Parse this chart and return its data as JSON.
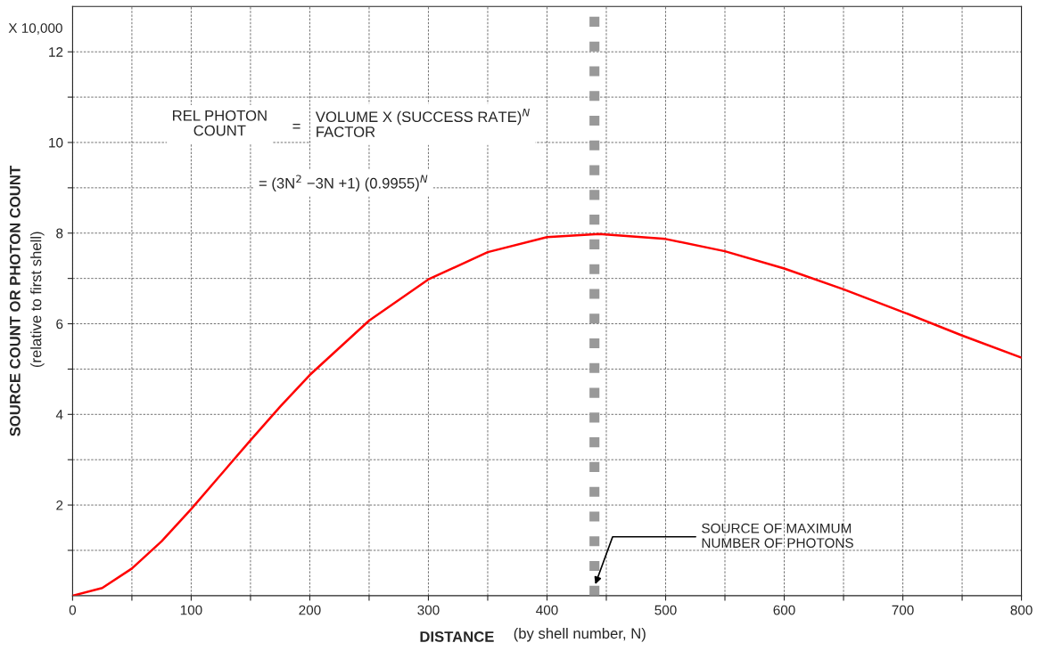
{
  "chart_data": {
    "type": "line",
    "xlabel": "DISTANCE",
    "ylabel": "SOURCE COUNT OR PHOTON COUNT",
    "x": [
      0,
      25,
      50,
      75,
      100,
      125,
      150,
      175,
      200,
      250,
      300,
      350,
      400,
      444,
      500,
      550,
      600,
      650,
      700,
      750,
      800
    ],
    "series": [
      {
        "color": "#ff0000",
        "values": [
          0,
          0.17,
          0.6,
          1.2,
          1.91,
          2.67,
          3.43,
          4.17,
          4.87,
          6.07,
          6.98,
          7.58,
          7.91,
          7.98,
          7.87,
          7.6,
          7.22,
          6.76,
          6.26,
          5.74,
          5.25
        ]
      }
    ],
    "xlim": [
      0,
      800
    ],
    "xticks": [
      0,
      {
        "value": 50,
        "label": null
      },
      100,
      {
        "value": 150,
        "label": null
      },
      200,
      {
        "value": 250,
        "label": null
      },
      300,
      {
        "value": 350,
        "label": null
      },
      400,
      {
        "value": 450,
        "label": null
      },
      500,
      {
        "value": 550,
        "label": null
      },
      600,
      {
        "value": 650,
        "label": null
      },
      700,
      {
        "value": 750,
        "label": null
      },
      800
    ],
    "ylim": [
      0,
      13
    ],
    "yticks": [
      {
        "value": 1,
        "label": null
      },
      2,
      {
        "value": 3,
        "label": null
      },
      4,
      {
        "value": 5,
        "label": null
      },
      6,
      {
        "value": 7,
        "label": null
      },
      8,
      {
        "value": 9,
        "label": null
      },
      10,
      {
        "value": 11,
        "label": null
      },
      12
    ],
    "grid": true,
    "marker": "none",
    "line_style": "solid",
    "ref_lines": [
      {
        "axis": "x",
        "value": 440,
        "color": "#999999",
        "line_style": "dotted"
      }
    ],
    "annotations": [
      "X 10,000",
      "(relative to first shell)",
      "(by shell number, N)",
      "REL PHOTON\nCOUNT",
      "=",
      "VOLUME X (SUCCESS RATE)$^{N}$\nFACTOR",
      "= (3N$^{2}$ −3N +1) (0.9955)$^{N}$",
      {
        "text": "SOURCE OF MAXIMUM\nNUMBER OF PHOTONS",
        "x": 440,
        "y": 0.2
      }
    ]
  }
}
